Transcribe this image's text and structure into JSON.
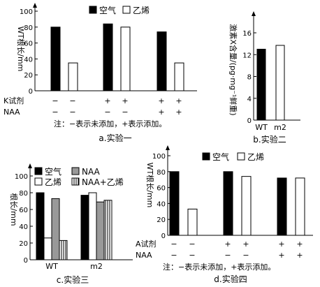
{
  "colors": {
    "black": "#000000",
    "white": "#ffffff",
    "gray": "#999999",
    "stripe": "#000000"
  },
  "panels": [
    {
      "id": "exp1",
      "caption": "a.实验一",
      "ylabel": "WT根长/mm",
      "ylim": [
        0,
        100
      ],
      "yticks": [
        "0",
        "20",
        "40",
        "60",
        "80",
        "100"
      ],
      "legend": [
        {
          "label": "空气",
          "swatch": "black"
        },
        {
          "label": "乙烯",
          "swatch": "white"
        }
      ],
      "groups": [
        {
          "values": [
            80,
            35
          ]
        },
        {
          "values": [
            84,
            80
          ]
        },
        {
          "values": [
            74,
            35
          ]
        }
      ],
      "treatment_rows": [
        {
          "label": "K试剂",
          "marks": [
            "−",
            "−",
            "+",
            "+",
            "+",
            "+"
          ]
        },
        {
          "label": "NAA",
          "marks": [
            "−",
            "−",
            "−",
            "−",
            "+",
            "+"
          ]
        }
      ],
      "note": "注：−表示未添加，+表示添加。"
    },
    {
      "id": "exp2",
      "caption": "b.实验二",
      "ylabel": "激素X含量/(pg·mg⁻¹鲜重)",
      "ylim": [
        0,
        16
      ],
      "yticks": [
        "0",
        "4",
        "8",
        "12",
        "16"
      ],
      "categories": [
        "WT",
        "m2"
      ],
      "values": [
        13,
        13.7
      ]
    },
    {
      "id": "exp3",
      "caption": "c.实验三",
      "ylabel": "根长/mm",
      "ylim": [
        0,
        100
      ],
      "yticks": [
        "0",
        "20",
        "40",
        "60",
        "80",
        "100"
      ],
      "legend": [
        {
          "label": "空气",
          "swatch": "black"
        },
        {
          "label": "NAA",
          "swatch": "gray"
        },
        {
          "label": "乙烯",
          "swatch": "white"
        },
        {
          "label": "NAA+乙烯",
          "swatch": "stripe"
        }
      ],
      "categories": [
        "WT",
        "m2"
      ],
      "series": [
        {
          "values": [
            80,
            77
          ]
        },
        {
          "values": [
            26,
            80
          ]
        },
        {
          "values": [
            73,
            69
          ]
        },
        {
          "values": [
            23,
            71
          ]
        }
      ]
    },
    {
      "id": "exp4",
      "caption": "d.实验四",
      "ylabel": "WT根长/mm",
      "ylim": [
        0,
        100
      ],
      "yticks": [
        "0",
        "20",
        "40",
        "60",
        "80",
        "100"
      ],
      "legend": [
        {
          "label": "空气",
          "swatch": "black"
        },
        {
          "label": "乙烯",
          "swatch": "white"
        }
      ],
      "groups": [
        {
          "values": [
            80,
            33
          ]
        },
        {
          "values": [
            80,
            74
          ]
        },
        {
          "values": [
            72,
            72
          ]
        }
      ],
      "treatment_rows": [
        {
          "label": "A试剂",
          "marks": [
            "−",
            "−",
            "+",
            "+",
            "+",
            "+"
          ]
        },
        {
          "label": "NAA",
          "marks": [
            "−",
            "−",
            "−",
            "−",
            "+",
            "+"
          ]
        }
      ],
      "note": "注：−表示未添加，+表示添加。"
    }
  ],
  "chart_data": [
    {
      "type": "bar",
      "title": "",
      "caption": "a.实验一",
      "ylabel": "WT根长/mm",
      "ylim": [
        0,
        100
      ],
      "categories": [
        "K−/NAA−",
        "K+/NAA−",
        "K+/NAA+"
      ],
      "series": [
        {
          "name": "空气",
          "values": [
            80,
            84,
            74
          ]
        },
        {
          "name": "乙烯",
          "values": [
            35,
            80,
            35
          ]
        }
      ],
      "legend": "top-right",
      "grid": false
    },
    {
      "type": "bar",
      "title": "",
      "caption": "b.实验二",
      "ylabel": "激素X含量/(pg·mg⁻¹鲜重)",
      "ylim": [
        0,
        16
      ],
      "categories": [
        "WT",
        "m2"
      ],
      "values": [
        13,
        13.7
      ],
      "grid": false
    },
    {
      "type": "bar",
      "title": "",
      "caption": "c.实验三",
      "ylabel": "根长/mm",
      "ylim": [
        0,
        100
      ],
      "categories": [
        "WT",
        "m2"
      ],
      "series": [
        {
          "name": "空气",
          "values": [
            80,
            77
          ]
        },
        {
          "name": "乙烯",
          "values": [
            26,
            80
          ]
        },
        {
          "name": "NAA",
          "values": [
            73,
            69
          ]
        },
        {
          "name": "NAA+乙烯",
          "values": [
            23,
            71
          ]
        }
      ],
      "legend": "top",
      "grid": false
    },
    {
      "type": "bar",
      "title": "",
      "caption": "d.实验四",
      "ylabel": "WT根长/mm",
      "ylim": [
        0,
        100
      ],
      "categories": [
        "A−/NAA−",
        "A+/NAA−",
        "A+/NAA+"
      ],
      "series": [
        {
          "name": "空气",
          "values": [
            80,
            80,
            72
          ]
        },
        {
          "name": "乙烯",
          "values": [
            33,
            74,
            72
          ]
        }
      ],
      "legend": "top",
      "grid": false
    }
  ]
}
